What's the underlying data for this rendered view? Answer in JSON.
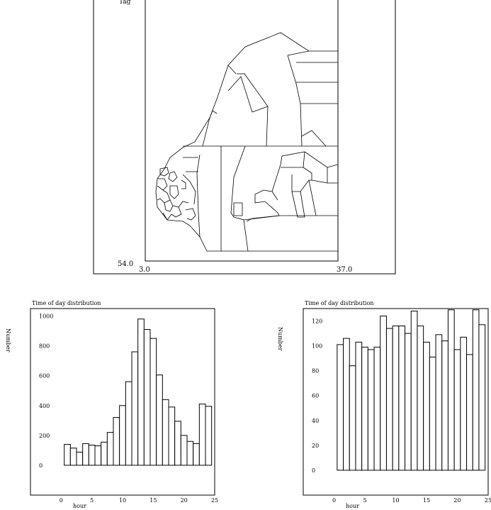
{
  "map": {
    "corner_top": "Tag",
    "lat_min": "54.0",
    "lon_min": "3.0",
    "lon_max": "37.0"
  },
  "chart_data": [
    {
      "type": "bar",
      "title": "Time of day distribution",
      "xlabel": "hour",
      "ylabel": "Number",
      "xlim": [
        -5,
        25
      ],
      "ylim": [
        -200,
        1050
      ],
      "xticks": [
        "0",
        "5",
        "10",
        "15",
        "20",
        "25"
      ],
      "yticks": [
        "0",
        "200",
        "400",
        "600",
        "800",
        "1000"
      ],
      "x": [
        1,
        2,
        3,
        4,
        5,
        6,
        7,
        8,
        9,
        10,
        11,
        12,
        13,
        14,
        15,
        16,
        17,
        18,
        19,
        20,
        21,
        22,
        23,
        24
      ],
      "values": [
        140,
        115,
        88,
        145,
        135,
        130,
        155,
        220,
        320,
        400,
        560,
        760,
        980,
        910,
        850,
        605,
        440,
        390,
        295,
        200,
        160,
        145,
        410,
        395
      ]
    },
    {
      "type": "bar",
      "title": "Time of day distribution",
      "xlabel": "hour",
      "ylabel": "Number",
      "xlim": [
        -5,
        25
      ],
      "ylim": [
        -20,
        130
      ],
      "xticks": [
        "0",
        "5",
        "10",
        "15",
        "20",
        "25"
      ],
      "yticks": [
        "0",
        "20",
        "40",
        "60",
        "80",
        "100",
        "120"
      ],
      "x": [
        1,
        2,
        3,
        4,
        5,
        6,
        7,
        8,
        9,
        10,
        11,
        12,
        13,
        14,
        15,
        16,
        17,
        18,
        19,
        20,
        21,
        22,
        23,
        24
      ],
      "values": [
        101,
        106,
        84,
        103,
        99,
        97,
        99,
        124,
        114,
        116,
        116,
        110,
        128,
        116,
        103,
        91,
        109,
        104,
        129,
        97,
        107,
        93,
        129,
        117
      ]
    }
  ]
}
